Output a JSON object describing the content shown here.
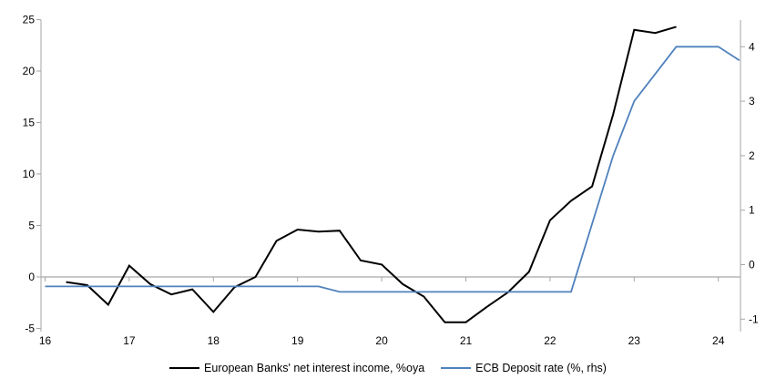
{
  "chart_data": {
    "type": "line",
    "title": "",
    "grid": "off",
    "legend_position": "bottom",
    "x_axis": {
      "tick_labels": [
        "16",
        "17",
        "18",
        "19",
        "20",
        "21",
        "22",
        "23",
        "24"
      ],
      "tick_values": [
        16,
        17,
        18,
        19,
        20,
        21,
        22,
        23,
        24
      ],
      "range": [
        15.95,
        24.3
      ]
    },
    "left_axis": {
      "ticks": [
        25,
        20,
        15,
        10,
        5,
        0,
        -5
      ],
      "range": [
        -5,
        25
      ]
    },
    "right_axis": {
      "ticks": [
        4,
        3,
        2,
        1,
        0,
        -1
      ],
      "range": [
        -1.3,
        4.55
      ]
    },
    "colors": {
      "nii_line": "#000000",
      "deposit_rate_line": "#4F81BD",
      "axis": "#A6A6A6",
      "zero_line": "#A6A6A6",
      "text": "#000000"
    },
    "series": [
      {
        "name": "European Banks' net interest income, %oya",
        "axis": "left",
        "color": "#000000",
        "x": [
          16.25,
          16.5,
          16.75,
          17.0,
          17.25,
          17.5,
          17.75,
          18.0,
          18.25,
          18.5,
          18.75,
          19.0,
          19.25,
          19.5,
          19.75,
          20.0,
          20.25,
          20.5,
          20.75,
          21.0,
          21.25,
          21.5,
          21.75,
          22.0,
          22.25,
          22.5,
          22.75,
          23.0,
          23.25,
          23.5
        ],
        "values": [
          -0.5,
          -0.8,
          -2.7,
          1.1,
          -0.7,
          -1.7,
          -1.2,
          -3.4,
          -1.0,
          0.0,
          3.5,
          4.6,
          4.4,
          4.5,
          1.6,
          1.2,
          -0.7,
          -1.9,
          -4.4,
          -4.4,
          -2.9,
          -1.5,
          0.5,
          5.5,
          7.4,
          8.8,
          15.8,
          24.0,
          23.7,
          24.3
        ]
      },
      {
        "name": "ECB Deposit rate (%, rhs)",
        "axis": "right",
        "color": "#4F81BD",
        "x": [
          16.0,
          16.25,
          16.5,
          16.75,
          17.0,
          17.25,
          17.5,
          17.75,
          18.0,
          18.25,
          18.5,
          18.75,
          19.0,
          19.25,
          19.5,
          19.75,
          20.0,
          20.25,
          20.5,
          20.75,
          21.0,
          21.25,
          21.5,
          21.75,
          22.0,
          22.25,
          22.5,
          22.75,
          23.0,
          23.25,
          23.5,
          23.75,
          24.0,
          24.25
        ],
        "values": [
          -0.4,
          -0.4,
          -0.4,
          -0.4,
          -0.4,
          -0.4,
          -0.4,
          -0.4,
          -0.4,
          -0.4,
          -0.4,
          -0.4,
          -0.4,
          -0.4,
          -0.5,
          -0.5,
          -0.5,
          -0.5,
          -0.5,
          -0.5,
          -0.5,
          -0.5,
          -0.5,
          -0.5,
          -0.5,
          -0.5,
          0.75,
          2.0,
          3.0,
          3.5,
          4.0,
          4.0,
          4.0,
          3.75
        ]
      }
    ],
    "legend": {
      "entries": [
        "European Banks' net interest income, %oya",
        "ECB Deposit rate (%, rhs)"
      ]
    }
  }
}
